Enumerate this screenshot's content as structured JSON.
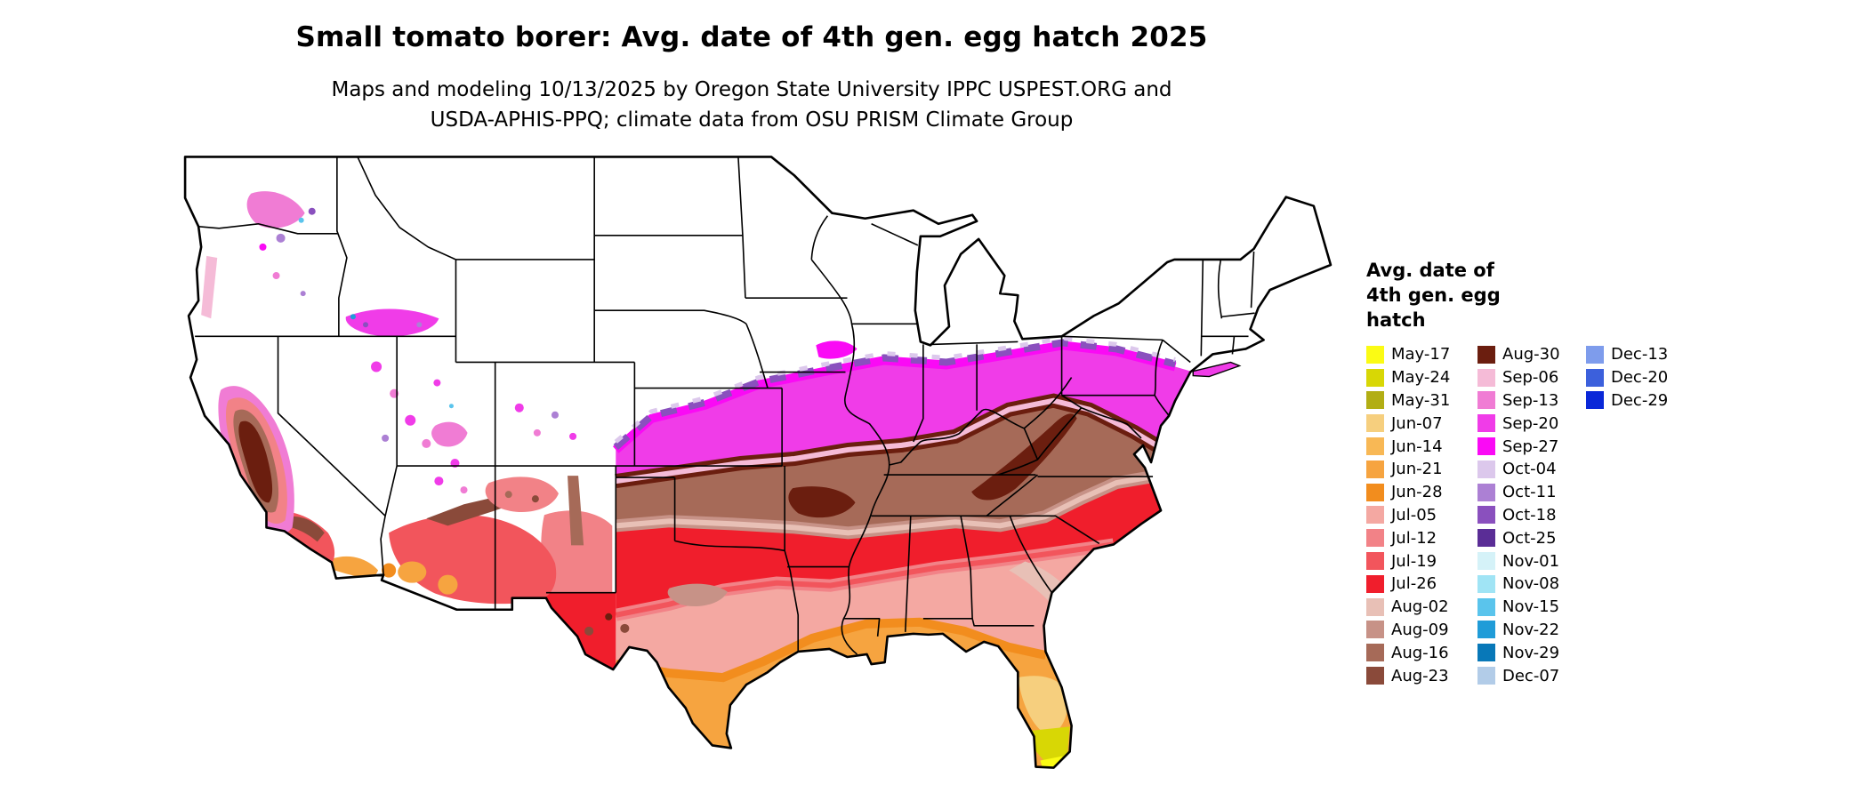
{
  "header": {
    "title": "Small tomato borer: Avg. date of 4th gen. egg hatch 2025",
    "subtitle_line1": "Maps and modeling 10/13/2025 by Oregon State University IPPC USPEST.ORG and",
    "subtitle_line2": "USDA-APHIS-PPQ; climate data from OSU PRISM Climate Group"
  },
  "legend": {
    "title_lines": [
      "Avg. date of",
      "4th gen. egg",
      "hatch"
    ],
    "columns": [
      [
        {
          "label": "May-17",
          "color": "#FBFB14"
        },
        {
          "label": "May-24",
          "color": "#D8D705"
        },
        {
          "label": "May-31",
          "color": "#B2AE14"
        },
        {
          "label": "Jun-07",
          "color": "#F6CF7E"
        },
        {
          "label": "Jun-14",
          "color": "#F8B855"
        },
        {
          "label": "Jun-21",
          "color": "#F6A440"
        },
        {
          "label": "Jun-28",
          "color": "#F28D1E"
        },
        {
          "label": "Jul-05",
          "color": "#F4A8A2"
        },
        {
          "label": "Jul-12",
          "color": "#F28287"
        },
        {
          "label": "Jul-19",
          "color": "#F2555C"
        },
        {
          "label": "Jul-26",
          "color": "#F01E2C"
        },
        {
          "label": "Aug-02",
          "color": "#E8C0B6"
        },
        {
          "label": "Aug-09",
          "color": "#C79287"
        },
        {
          "label": "Aug-16",
          "color": "#A66A58"
        },
        {
          "label": "Aug-23",
          "color": "#8A4A3A"
        }
      ],
      [
        {
          "label": "Aug-30",
          "color": "#6B1E0F"
        },
        {
          "label": "Sep-06",
          "color": "#F5BBD7"
        },
        {
          "label": "Sep-13",
          "color": "#F07CD4"
        },
        {
          "label": "Sep-20",
          "color": "#F03CE8"
        },
        {
          "label": "Sep-27",
          "color": "#FA0AF5"
        },
        {
          "label": "Oct-04",
          "color": "#DCC8EC"
        },
        {
          "label": "Oct-11",
          "color": "#AC80D4"
        },
        {
          "label": "Oct-18",
          "color": "#8A50BE"
        },
        {
          "label": "Oct-25",
          "color": "#5A2D96"
        },
        {
          "label": "Nov-01",
          "color": "#D5F2F8"
        },
        {
          "label": "Nov-08",
          "color": "#A0E4F5"
        },
        {
          "label": "Nov-15",
          "color": "#5AC4EC"
        },
        {
          "label": "Nov-22",
          "color": "#209CD8"
        },
        {
          "label": "Nov-29",
          "color": "#0878B8"
        },
        {
          "label": "Dec-07",
          "color": "#B2CCE8"
        }
      ],
      [
        {
          "label": "Dec-13",
          "color": "#7E9CEC"
        },
        {
          "label": "Dec-20",
          "color": "#3C60DC"
        },
        {
          "label": "Dec-29",
          "color": "#0A28D8"
        }
      ]
    ]
  },
  "map": {
    "background": "#FFFFFF",
    "outline_color": "#000000",
    "no_data_color": "#FFFFFF"
  }
}
